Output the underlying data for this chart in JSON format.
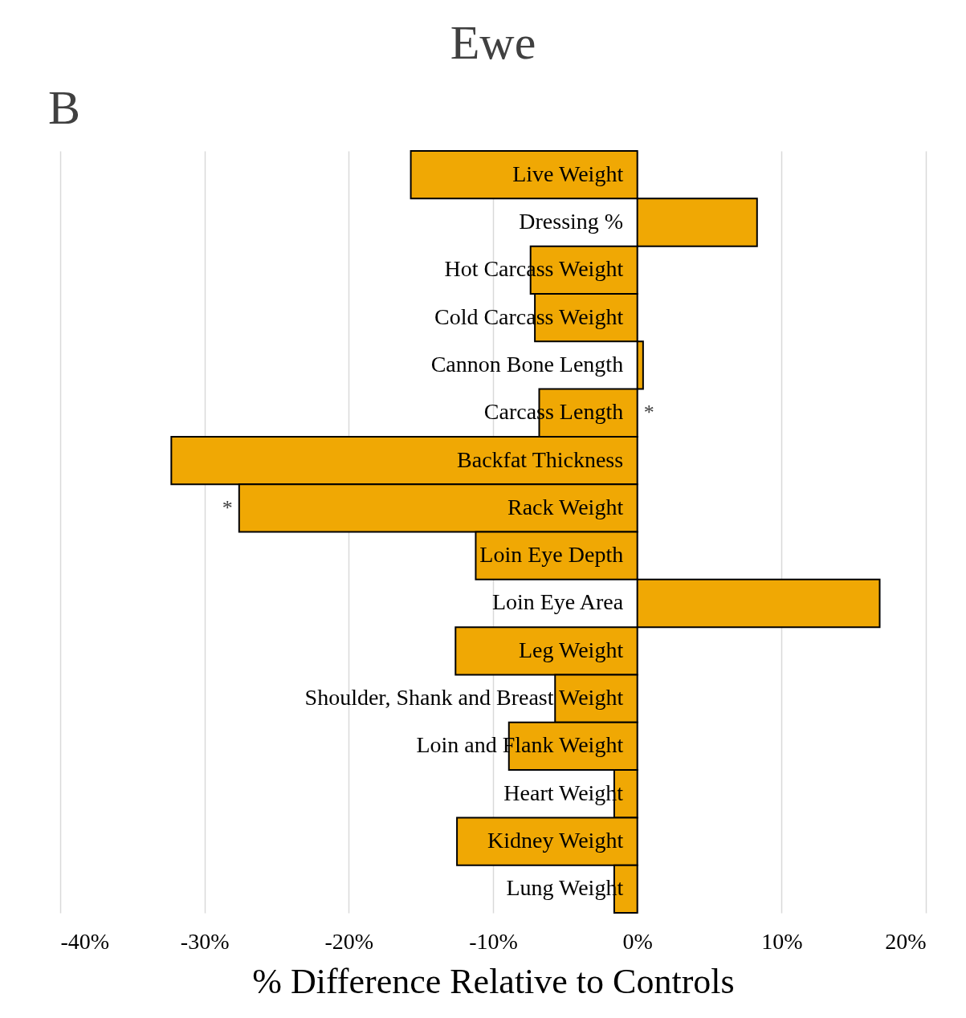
{
  "chart_data": {
    "type": "bar",
    "orientation": "horizontal",
    "title": "Ewe",
    "xlabel": "% Difference Relative to Controls",
    "categories": [
      "Live Weight",
      "Dressing %",
      "Hot Carcass Weight",
      "Cold Carcass Weight",
      "Cannon Bone Length",
      "Carcass Length",
      "Backfat Thickness",
      "Rack Weight",
      "Loin Eye Depth",
      "Loin Eye Area",
      "Leg Weight",
      "Shoulder,  Shank and Breast Weight",
      "Loin and Flank Weight",
      "Heart Weight",
      "Kidney Weight",
      "Lung Weight"
    ],
    "values": [
      -15.7,
      8.3,
      -7.4,
      -7.1,
      0.4,
      -6.8,
      -32.3,
      -27.6,
      -11.2,
      16.8,
      -12.6,
      -5.7,
      -8.9,
      -1.6,
      -12.5,
      -1.6
    ],
    "color": "#f0a804",
    "xlim": [
      -40,
      20
    ],
    "xticks": [
      {
        "value": -40,
        "label": "-40%"
      },
      {
        "value": -30,
        "label": "-30%"
      },
      {
        "value": -20,
        "label": "-20%"
      },
      {
        "value": -10,
        "label": "-10%"
      },
      {
        "value": 0,
        "label": "0%"
      },
      {
        "value": 10,
        "label": "10%"
      },
      {
        "value": 20,
        "label": "20%"
      }
    ],
    "value_labels": [
      null,
      null,
      null,
      null,
      null,
      "*",
      null,
      "*",
      null,
      null,
      null,
      null,
      null,
      null,
      null,
      null
    ],
    "grid": "x",
    "annotations": [
      "B"
    ]
  }
}
